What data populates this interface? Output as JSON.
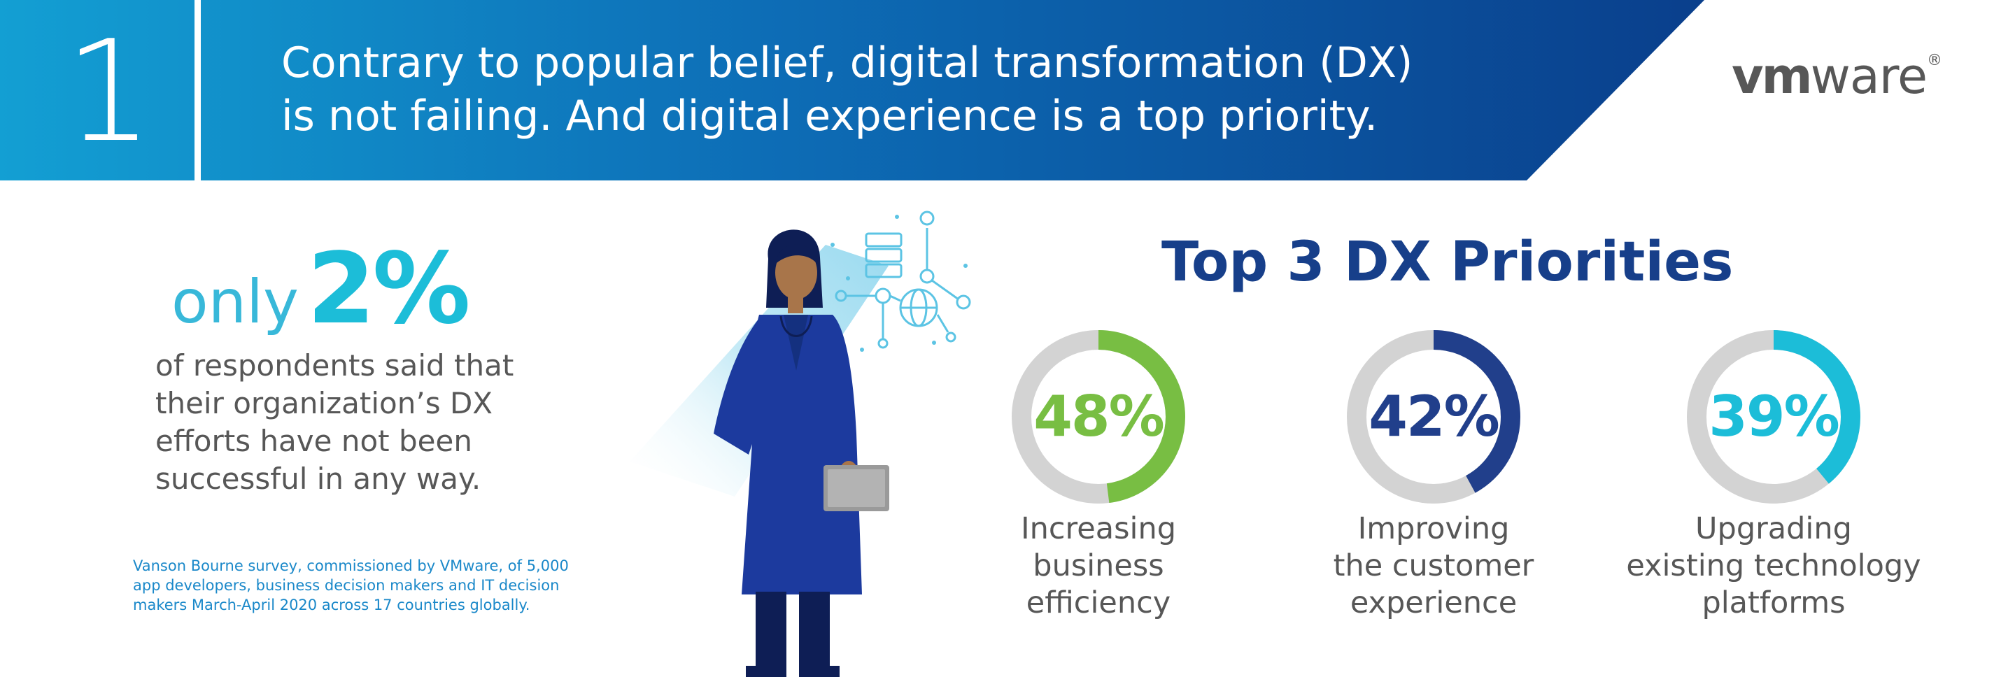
{
  "header": {
    "number": "1",
    "headline_lines": [
      "Contrary to popular belief, digital transformation (DX)",
      "is not failing. And digital experience is a top priority."
    ],
    "logo": {
      "vm": "vm",
      "ware": "ware",
      "reg": "®"
    }
  },
  "stat": {
    "prefix": "only",
    "value": "2%",
    "description_lines": [
      "of respondents said that",
      "their organization’s DX",
      "efforts have not been",
      "successful in any way."
    ]
  },
  "footnote_lines": [
    "Vanson Bourne survey, commissioned by VMware, of 5,000",
    "app developers, business decision makers and IT decision",
    "makers March-April 2020 across 17 countries globally."
  ],
  "priorities": {
    "title": "Top 3 DX Priorities",
    "items": [
      {
        "value": "48%",
        "fraction": 0.48,
        "color": "#78be43",
        "label_lines": [
          "Increasing",
          "business",
          "efficiency"
        ]
      },
      {
        "value": "42%",
        "fraction": 0.42,
        "color": "#213f8b",
        "label_lines": [
          "Improving",
          "the customer",
          "experience"
        ]
      },
      {
        "value": "39%",
        "fraction": 0.39,
        "color": "#1cbdd8",
        "label_lines": [
          "Upgrading",
          "existing technology",
          "platforms"
        ]
      }
    ],
    "track_color": "#d3d3d3"
  },
  "colors": {
    "header_start": "#12a0d4",
    "header_end": "#0a3f8c",
    "divider": "#ffffff"
  }
}
